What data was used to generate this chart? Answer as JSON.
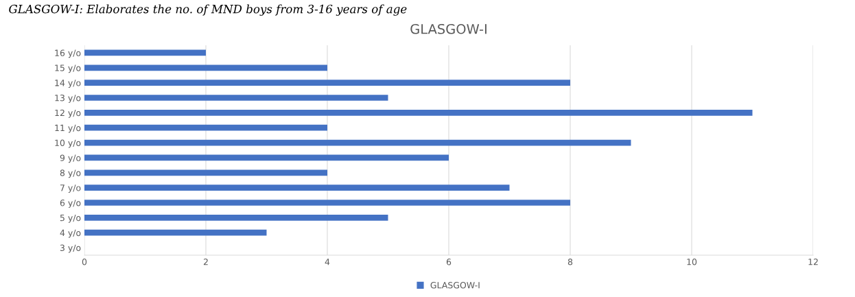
{
  "chart_data": {
    "type": "bar",
    "orientation": "horizontal",
    "title": "GLASGOW-I",
    "annotations": [
      "GLASGOW-I: Elaborates the no. of MND boys from 3-16 years of age"
    ],
    "categories": [
      "16 y/o",
      "15 y/o",
      "14 y/o",
      "13 y/o",
      "12 y/o",
      "11 y/o",
      "10 y/o",
      "9 y/o",
      "8 y/o",
      "7 y/o",
      "6 y/o",
      "5 y/o",
      "4 y/o",
      "3 y/o"
    ],
    "series": [
      {
        "name": "GLASGOW-I",
        "color": "#4472c4",
        "values": [
          2,
          4,
          8,
          5,
          11,
          4,
          9,
          6,
          4,
          7,
          8,
          5,
          3,
          0
        ]
      }
    ],
    "xlim": [
      0,
      12
    ],
    "xticks": [
      0,
      2,
      4,
      6,
      8,
      10,
      12
    ],
    "grid": "x",
    "legend": "bottom"
  }
}
